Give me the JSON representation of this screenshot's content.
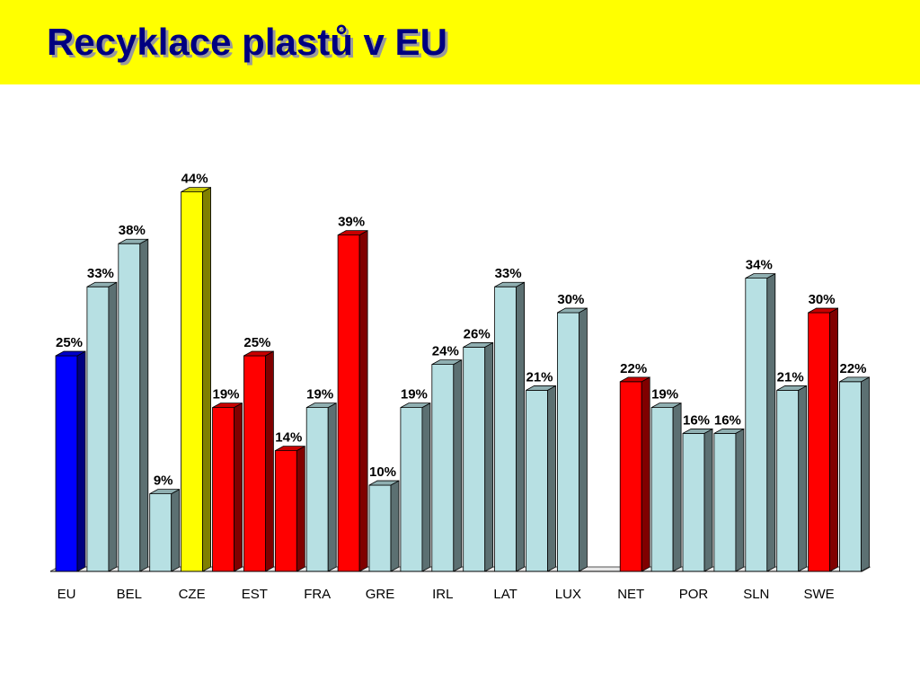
{
  "slide": {
    "title": "Recyklace plastů v EU"
  },
  "colors": {
    "header_background": "#ffff00",
    "title_text": "#000080",
    "default_bar": "#b7e0e3",
    "highlight_red": "#ff0000",
    "highlight_blue": "#0000ff",
    "highlight_yellow": "#ffff00"
  },
  "chart_data": {
    "type": "bar",
    "ylim": [
      0,
      45
    ],
    "grid": false,
    "legend": "none",
    "xlabel": "",
    "ylabel": "",
    "x_tick_labels": [
      "EU",
      "BEL",
      "CZE",
      "EST",
      "FRA",
      "GRE",
      "IRL",
      "LAT",
      "LUX",
      "NET",
      "POR",
      "SLN",
      "SWE"
    ],
    "bars": [
      {
        "value": 25,
        "label": "25%",
        "color": "blue"
      },
      {
        "value": 33,
        "label": "33%",
        "color": "default"
      },
      {
        "value": 38,
        "label": "38%",
        "color": "default"
      },
      {
        "value": 9,
        "label": "9%",
        "color": "default"
      },
      {
        "value": 44,
        "label": "44%",
        "color": "yellow"
      },
      {
        "value": 19,
        "label": "19%",
        "color": "red"
      },
      {
        "value": 25,
        "label": "25%",
        "color": "red"
      },
      {
        "value": 14,
        "label": "14%",
        "color": "red"
      },
      {
        "value": 19,
        "label": "19%",
        "color": "default"
      },
      {
        "value": 39,
        "label": "39%",
        "color": "red"
      },
      {
        "value": 10,
        "label": "10%",
        "color": "default"
      },
      {
        "value": 19,
        "label": "19%",
        "color": "default"
      },
      {
        "value": 24,
        "label": "24%",
        "color": "default"
      },
      {
        "value": 26,
        "label": "26%",
        "color": "default"
      },
      {
        "value": 33,
        "label": "33%",
        "color": "default"
      },
      {
        "value": 21,
        "label": "21%",
        "color": "default"
      },
      {
        "value": 30,
        "label": "30%",
        "color": "default"
      },
      {
        "value": 0,
        "label": "",
        "color": "default"
      },
      {
        "value": 22,
        "label": "22%",
        "color": "red"
      },
      {
        "value": 19,
        "label": "19%",
        "color": "default"
      },
      {
        "value": 16,
        "label": "16%",
        "color": "default"
      },
      {
        "value": 16,
        "label": "16%",
        "color": "default"
      },
      {
        "value": 34,
        "label": "34%",
        "color": "default"
      },
      {
        "value": 21,
        "label": "21%",
        "color": "default"
      },
      {
        "value": 30,
        "label": "30%",
        "color": "red"
      },
      {
        "value": 22,
        "label": "22%",
        "color": "default"
      }
    ]
  }
}
